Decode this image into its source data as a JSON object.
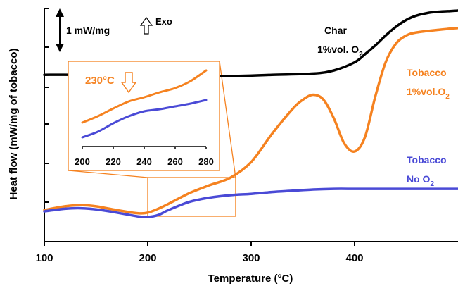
{
  "chart_data": {
    "type": "line",
    "xlabel": "Temperature (°C)",
    "ylabel": "Heat flow (mW/mg of tobacco)",
    "xlim": [
      100,
      500
    ],
    "x_ticks": [
      100,
      200,
      300,
      400
    ],
    "y_units_note": "relative heat flow, arbitrary offset",
    "scale_bar_label": "1 mW/mg",
    "exo_label": "Exo",
    "series": [
      {
        "name": "Char 1%vol. O2",
        "label_line1": "Char",
        "label_line2": "1%vol. O",
        "label_sub": "2",
        "color": "#000000",
        "x": [
          100,
          130,
          160,
          200,
          240,
          280,
          320,
          360,
          380,
          400,
          410,
          420,
          430,
          440,
          450,
          460,
          470,
          480,
          490,
          500
        ],
        "y": [
          2.45,
          2.45,
          2.44,
          2.44,
          2.44,
          2.43,
          2.45,
          2.47,
          2.52,
          2.65,
          2.78,
          2.92,
          3.08,
          3.22,
          3.33,
          3.4,
          3.44,
          3.46,
          3.47,
          3.48
        ]
      },
      {
        "name": "Tobacco 1%vol.O2",
        "label_line1": "Tobacco",
        "label_line2": "1%vol.O",
        "label_sub": "2",
        "color": "#f58220",
        "x": [
          100,
          120,
          135,
          150,
          170,
          190,
          200,
          210,
          220,
          240,
          260,
          280,
          300,
          320,
          340,
          350,
          360,
          370,
          380,
          390,
          400,
          410,
          420,
          430,
          440,
          450,
          460,
          480,
          500
        ],
        "y": [
          0.28,
          0.34,
          0.36,
          0.34,
          0.28,
          0.23,
          0.24,
          0.3,
          0.38,
          0.55,
          0.68,
          0.8,
          1.05,
          1.5,
          1.9,
          2.05,
          2.13,
          2.05,
          1.75,
          1.35,
          1.22,
          1.45,
          2.1,
          2.65,
          2.95,
          3.08,
          3.13,
          3.17,
          3.2
        ]
      },
      {
        "name": "Tobacco No O2",
        "label_line1": "Tobacco",
        "label_line2": "No O",
        "label_sub": "2",
        "color": "#4a4ad6",
        "x": [
          100,
          120,
          135,
          150,
          170,
          190,
          200,
          210,
          220,
          240,
          260,
          280,
          300,
          320,
          340,
          360,
          380,
          400,
          420,
          440,
          460,
          480,
          500
        ],
        "y": [
          0.26,
          0.3,
          0.31,
          0.29,
          0.24,
          0.18,
          0.17,
          0.2,
          0.28,
          0.41,
          0.48,
          0.52,
          0.54,
          0.57,
          0.59,
          0.61,
          0.62,
          0.62,
          0.62,
          0.62,
          0.62,
          0.62,
          0.62
        ]
      }
    ],
    "inset": {
      "xlim": [
        200,
        280
      ],
      "x_ticks": [
        200,
        220,
        240,
        260,
        280
      ],
      "annotation": "230°C",
      "annotation_x": 230,
      "series": [
        {
          "name": "Tobacco 1%vol.O2",
          "color": "#f58220",
          "x": [
            200,
            210,
            220,
            230,
            240,
            250,
            260,
            270,
            280
          ],
          "y": [
            0.21,
            0.3,
            0.41,
            0.51,
            0.57,
            0.64,
            0.7,
            0.8,
            0.95
          ]
        },
        {
          "name": "Tobacco No O2",
          "color": "#4a4ad6",
          "x": [
            200,
            210,
            220,
            230,
            240,
            250,
            260,
            270,
            280
          ],
          "y": [
            0.0,
            0.08,
            0.2,
            0.3,
            0.37,
            0.4,
            0.44,
            0.48,
            0.53
          ]
        }
      ]
    },
    "zoom_region": {
      "x": [
        200,
        285
      ]
    }
  }
}
